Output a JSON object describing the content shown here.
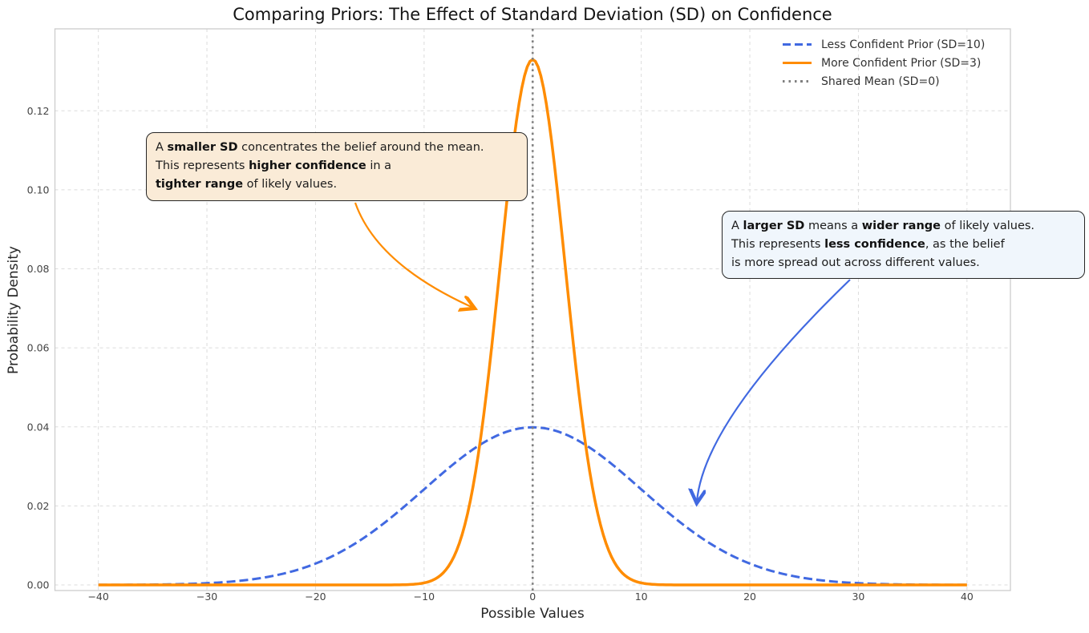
{
  "title": "Comparing Priors: The Effect of Standard Deviation (SD) on Confidence",
  "chart_data": {
    "type": "line",
    "title": "Comparing Priors: The Effect of Standard Deviation (SD) on Confidence",
    "xlabel": "Possible Values",
    "ylabel": "Probability Density",
    "xlim": [
      -44,
      44
    ],
    "ylim": [
      -0.00142,
      0.14075
    ],
    "xticks": [
      -40,
      -30,
      -20,
      -10,
      0,
      10,
      20,
      30,
      40
    ],
    "xtick_labels": [
      "−40",
      "−30",
      "−20",
      "−10",
      "0",
      "10",
      "20",
      "30",
      "40"
    ],
    "yticks": [
      0.0,
      0.02,
      0.04,
      0.06,
      0.08,
      0.1,
      0.12
    ],
    "ytick_labels": [
      "0.00",
      "0.02",
      "0.04",
      "0.06",
      "0.08",
      "0.10",
      "0.12"
    ],
    "grid": "dashed",
    "legend_position": "upper right",
    "series": [
      {
        "label": "Less Confident Prior (SD=10)",
        "kind": "normal_pdf",
        "mean": 0,
        "sd": 10,
        "peak_density": 0.0399,
        "x_range": [
          -40,
          40
        ],
        "color": "#4169E1",
        "line_style": "dashed",
        "line_width": 3
      },
      {
        "label": "More Confident Prior (SD=3)",
        "kind": "normal_pdf",
        "mean": 0,
        "sd": 3,
        "peak_density": 0.133,
        "x_range": [
          -40,
          40
        ],
        "color": "#FF8C00",
        "line_style": "solid",
        "line_width": 3.5
      },
      {
        "label": "Shared Mean (SD=0)",
        "kind": "vline",
        "x": 0,
        "color": "#808080",
        "line_style": "dotted",
        "line_width": 2.6
      }
    ]
  },
  "annotations": [
    {
      "id": "smaller-sd",
      "target_series": "More Confident Prior (SD=3)",
      "lines": [
        [
          "A ",
          "smaller SD",
          " concentrates the belief around the mean."
        ],
        [
          "This represents ",
          "higher confidence",
          " in a"
        ],
        [
          "tighter range",
          " of likely values."
        ]
      ],
      "box_color": "#FAEBD7",
      "arrow_color": "#FF8C00"
    },
    {
      "id": "larger-sd",
      "target_series": "Less Confident Prior (SD=10)",
      "lines": [
        [
          "A ",
          "larger SD",
          " means a ",
          "wider range",
          " of likely values."
        ],
        [
          "This represents ",
          "less confidence",
          ", as the belief"
        ],
        [
          "is more spread out across different values."
        ]
      ],
      "box_color": "#F0F6FC",
      "arrow_color": "#4169E1"
    }
  ],
  "colors": {
    "less_confident": "#4169E1",
    "more_confident": "#FF8C00",
    "shared_mean": "#808080",
    "grid": "#DCDCDC",
    "spine": "#CCCCCC",
    "tick_text": "#444444",
    "box_border": "#262626",
    "smaller_box_bg": "#FAEBD7",
    "larger_box_bg": "#F0F6FC"
  }
}
